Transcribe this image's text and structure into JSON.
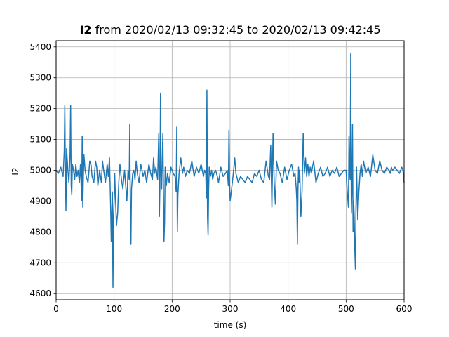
{
  "chart_data": {
    "type": "line",
    "title_bold": "I2",
    "title_rest": " from 2020/02/13 09:32:45 to 2020/02/13 09:42:45",
    "xlabel": "time (s)",
    "ylabel": "I2",
    "xlim": [
      0,
      600
    ],
    "ylim": [
      4580,
      5420
    ],
    "xticks": [
      0,
      100,
      200,
      300,
      400,
      500,
      600
    ],
    "yticks": [
      4600,
      4700,
      4800,
      4900,
      5000,
      5100,
      5200,
      5300,
      5400
    ],
    "grid": true,
    "series": [
      {
        "color": "#1f77b4",
        "x": [
          0,
          4,
          8,
          12,
          14,
          15,
          16,
          17,
          18,
          20,
          22,
          24,
          25,
          26,
          27,
          28,
          30,
          32,
          34,
          36,
          38,
          40,
          42,
          44,
          45,
          46,
          47,
          48,
          50,
          52,
          55,
          58,
          60,
          62,
          65,
          68,
          70,
          72,
          75,
          78,
          80,
          82,
          85,
          88,
          90,
          92,
          94,
          95,
          96,
          97,
          98,
          99,
          100,
          101,
          102,
          104,
          106,
          108,
          110,
          112,
          115,
          118,
          120,
          122,
          124,
          126,
          127,
          128,
          129,
          130,
          132,
          134,
          136,
          138,
          140,
          143,
          146,
          150,
          153,
          156,
          160,
          163,
          166,
          168,
          170,
          172,
          175,
          177,
          178,
          179,
          180,
          181,
          182,
          184,
          186,
          187,
          188,
          190,
          192,
          195,
          198,
          200,
          202,
          205,
          207,
          208,
          209,
          210,
          212,
          215,
          218,
          220,
          223,
          226,
          230,
          234,
          238,
          242,
          246,
          250,
          254,
          256,
          258,
          259,
          260,
          261,
          262,
          263,
          264,
          266,
          268,
          270,
          272,
          275,
          278,
          280,
          284,
          288,
          292,
          295,
          297,
          298,
          299,
          300,
          302,
          305,
          308,
          310,
          314,
          318,
          322,
          326,
          330,
          334,
          338,
          342,
          346,
          350,
          354,
          358,
          362,
          366,
          368,
          370,
          372,
          374,
          376,
          378,
          380,
          383,
          386,
          390,
          394,
          398,
          402,
          406,
          410,
          412,
          414,
          415,
          416,
          417,
          418,
          419,
          420,
          422,
          424,
          426,
          428,
          430,
          432,
          434,
          436,
          438,
          440,
          444,
          448,
          452,
          456,
          460,
          464,
          468,
          472,
          476,
          480,
          484,
          488,
          492,
          496,
          500,
          502,
          504,
          505,
          506,
          507,
          508,
          509,
          510,
          511,
          512,
          513,
          514,
          515,
          516,
          517,
          518,
          520,
          522,
          524,
          526,
          528,
          530,
          534,
          538,
          542,
          546,
          550,
          554,
          558,
          562,
          566,
          570,
          574,
          576,
          578,
          580,
          584,
          588,
          592,
          596,
          598,
          600
        ],
        "y": [
          5000,
          4990,
          5010,
          4980,
          5060,
          5210,
          4980,
          4870,
          5070,
          5010,
          4960,
          5050,
          5210,
          4950,
          4920,
          5020,
          5000,
          4970,
          5020,
          4980,
          5000,
          4960,
          5020,
          4900,
          5110,
          4880,
          4980,
          5050,
          5000,
          4980,
          4960,
          5030,
          5020,
          4980,
          4960,
          5030,
          5010,
          4950,
          5000,
          4960,
          5030,
          5000,
          4960,
          5020,
          4980,
          5040,
          4880,
          4770,
          4860,
          4930,
          4620,
          4850,
          4900,
          4990,
          4930,
          4820,
          4860,
          4960,
          5020,
          4980,
          4940,
          5000,
          4950,
          4900,
          5000,
          4970,
          5150,
          4860,
          4760,
          4940,
          4990,
          5000,
          4970,
          5030,
          4990,
          4960,
          5020,
          4980,
          5000,
          4960,
          5020,
          4990,
          4970,
          5040,
          4990,
          5010,
          4970,
          5120,
          4850,
          4950,
          5250,
          4980,
          4940,
          5120,
          4770,
          4830,
          5010,
          4950,
          4990,
          4960,
          5010,
          5000,
          4990,
          4980,
          4930,
          5140,
          4800,
          4920,
          4990,
          5040,
          4990,
          5010,
          4980,
          5000,
          4990,
          5030,
          4980,
          5010,
          4990,
          5020,
          4980,
          5000,
          4990,
          4910,
          5260,
          4850,
          4790,
          4940,
          5010,
          4980,
          5000,
          4970,
          4990,
          5000,
          4980,
          4960,
          5010,
          4980,
          4990,
          5000,
          4950,
          5130,
          4960,
          4900,
          4930,
          4980,
          5040,
          4990,
          4960,
          4980,
          4970,
          4960,
          4980,
          4970,
          4960,
          4990,
          4980,
          5000,
          4970,
          4960,
          5030,
          4980,
          4970,
          5080,
          4880,
          5120,
          4960,
          4890,
          5030,
          5000,
          4990,
          4960,
          5010,
          4970,
          5000,
          5020,
          4980,
          4990,
          4940,
          4900,
          4760,
          4940,
          5010,
          4960,
          5000,
          4850,
          4930,
          5120,
          4990,
          5040,
          4980,
          5020,
          4980,
          5010,
          4990,
          5030,
          4960,
          4990,
          5010,
          4980,
          4990,
          5010,
          4980,
          5000,
          4990,
          5010,
          4980,
          4990,
          5000,
          5000,
          4930,
          4880,
          5110,
          4990,
          4970,
          5380,
          4860,
          4940,
          5150,
          4800,
          4900,
          4850,
          4740,
          4680,
          4880,
          5010,
          4840,
          4930,
          4990,
          5020,
          4980,
          5030,
          4990,
          5010,
          4980,
          5050,
          5000,
          4990,
          5030,
          5000,
          4990,
          5010,
          5000,
          4990,
          5010,
          5000,
          5010,
          5000,
          4990,
          5010,
          5000,
          4960
        ]
      }
    ]
  }
}
